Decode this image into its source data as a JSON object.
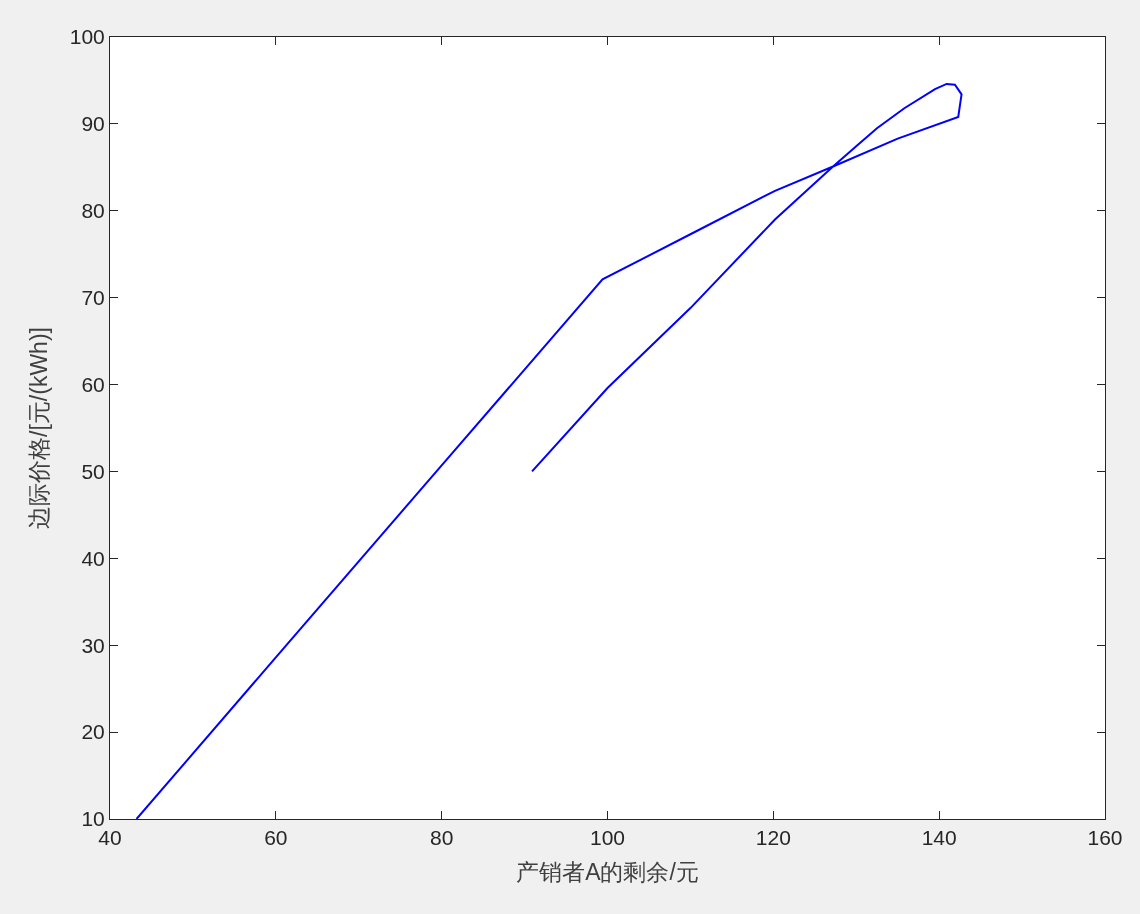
{
  "chart_data": {
    "type": "line",
    "xlabel": "产销者A的剩余/元",
    "ylabel": "边际价格/[元/(kWh)]",
    "x": [
      43.2,
      60,
      80,
      99.4,
      110,
      120.2,
      127.2,
      135,
      142.3,
      142.7,
      141.9,
      140.9,
      139.5,
      135.8,
      132.5,
      130.1,
      127.2,
      120.2,
      110,
      100,
      90.9
    ],
    "series": [
      {
        "color": "#0000ff",
        "values": [
          10,
          28.6,
          50.7,
          72.1,
          77.3,
          82.3,
          85.1,
          88.3,
          90.8,
          93.4,
          94.5,
          94.6,
          94.0,
          91.8,
          89.5,
          87.5,
          85.1,
          79.0,
          68.8,
          59.6,
          50.0
        ]
      }
    ],
    "xlim": [
      40,
      160
    ],
    "xticks": [
      40,
      60,
      80,
      100,
      120,
      140,
      160
    ],
    "ylim": [
      10,
      100
    ],
    "yticks": [
      10,
      20,
      30,
      40,
      50,
      60,
      70,
      80,
      90,
      100
    ],
    "marker": "none",
    "line_style": "solid"
  }
}
